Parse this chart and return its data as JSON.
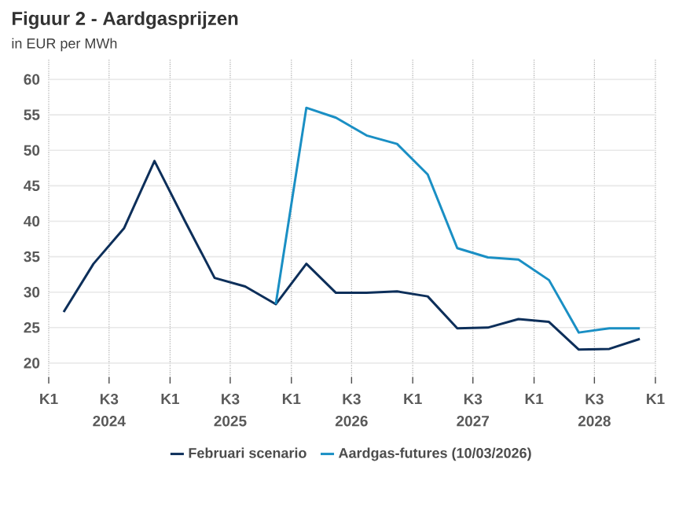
{
  "chart_data": {
    "type": "line",
    "title": "Figuur 2 - Aardgasprijzen",
    "subtitle": "in EUR per MWh",
    "x": [
      "2024-02-15",
      "2024-05-15",
      "2024-08-15",
      "2024-11-15",
      "2025-02-15",
      "2025-05-15",
      "2025-08-15",
      "2025-11-15",
      "2026-02-15",
      "2026-05-15",
      "2026-08-15",
      "2026-11-15",
      "2027-02-15",
      "2027-05-15",
      "2027-08-15",
      "2027-11-15",
      "2028-02-15",
      "2028-05-15",
      "2028-08-15",
      "2028-11-15"
    ],
    "series": [
      {
        "name": "Februari scenario",
        "color": "#0d2f5a",
        "values": [
          27.2,
          34,
          39,
          48.5,
          40,
          32,
          30.8,
          28.3,
          34,
          29.9,
          29.9,
          30.1,
          29.4,
          24.9,
          25,
          26.2,
          25.8,
          21.9,
          22,
          23.4
        ]
      },
      {
        "name": "Aardgas-futures (10/03/2026)",
        "color": "#1a8fc4",
        "values": [
          null,
          null,
          null,
          null,
          null,
          null,
          null,
          28.3,
          56,
          54.6,
          52.1,
          50.9,
          46.6,
          36.2,
          34.9,
          34.6,
          31.7,
          24.3,
          24.9,
          24.9
        ]
      }
    ],
    "xlim": [
      "2024-01-01",
      "2029-01-01"
    ],
    "xticks": [
      {
        "value": "2024-01-01",
        "label": "K1"
      },
      {
        "value": "2024-07-01",
        "label": "K3"
      },
      {
        "value": "2025-01-01",
        "label": "K1"
      },
      {
        "value": "2025-07-01",
        "label": "K3"
      },
      {
        "value": "2026-01-01",
        "label": "K1"
      },
      {
        "value": "2026-07-01",
        "label": "K3"
      },
      {
        "value": "2027-01-01",
        "label": "K1"
      },
      {
        "value": "2027-07-01",
        "label": "K3"
      },
      {
        "value": "2028-01-01",
        "label": "K1"
      },
      {
        "value": "2028-07-01",
        "label": "K3"
      },
      {
        "value": "2029-01-01",
        "label": "K1"
      }
    ],
    "x2lim": [
      "2024-01-01",
      "2029-01-01"
    ],
    "x2ticks": [
      {
        "value": "2024-07-01",
        "label": "2024"
      },
      {
        "value": "2025-07-01",
        "label": "2025"
      },
      {
        "value": "2026-07-01",
        "label": "2026"
      },
      {
        "value": "2027-07-01",
        "label": "2027"
      },
      {
        "value": "2028-07-01",
        "label": "2028"
      }
    ],
    "ylim": [
      18,
      63
    ],
    "yticks": [
      20,
      25,
      30,
      35,
      40,
      45,
      50,
      55,
      60
    ],
    "grid": true,
    "legend": "bottom",
    "marker": "none",
    "line_style": "solid"
  }
}
